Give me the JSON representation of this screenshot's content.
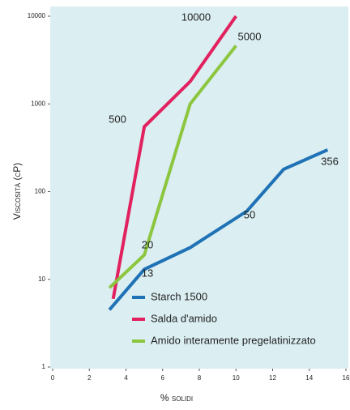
{
  "chart_data": {
    "type": "line",
    "x_label": "% solidi",
    "y_label": "Viscosità (cP)",
    "xlim": [
      0,
      16
    ],
    "xticks": [
      0,
      2,
      4,
      6,
      8,
      10,
      12,
      14,
      16
    ],
    "ylim": [
      1,
      10000
    ],
    "yticks": [
      1,
      10,
      100,
      1000,
      10000
    ],
    "y_scale": "log",
    "series": [
      {
        "name": "Starch 1500",
        "color": "#1f72b5",
        "x": [
          3.1,
          5,
          7.5,
          10.6,
          12.6,
          15
        ],
        "values": [
          4.5,
          13,
          23,
          60,
          180,
          300
        ]
      },
      {
        "name": "Salda d'amido",
        "color": "#e2215f",
        "x": [
          3.3,
          5,
          7.5,
          10
        ],
        "values": [
          6,
          550,
          1800,
          10000
        ]
      },
      {
        "name": "Amido interamente pregelatinizzato",
        "color": "#8cc63f",
        "x": [
          3.1,
          5,
          7.5,
          10
        ],
        "values": [
          8,
          19,
          1000,
          4600
        ]
      }
    ],
    "annotations": [
      "10000",
      "5000",
      "500",
      "20",
      "13",
      "50",
      "356"
    ]
  }
}
